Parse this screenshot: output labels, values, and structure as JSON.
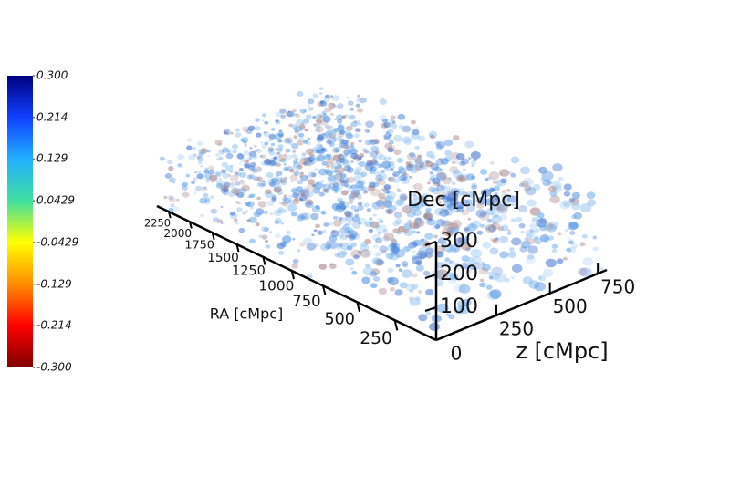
{
  "chart_data": {
    "type": "volume",
    "colorbar": {
      "lim": [
        -0.3,
        0.3
      ],
      "ticks": [
        {
          "value": 0.3,
          "label": "0.300"
        },
        0.214,
        0.129,
        0.0429,
        -0.0429,
        -0.129,
        -0.214,
        {
          "value": -0.3,
          "label": "-0.300"
        }
      ],
      "colors": [
        "#7f0000",
        "#ff0000",
        "#ff8c00",
        "#ffff00",
        "#40e0a0",
        "#20b0ff",
        "#1040ff",
        "#000080"
      ]
    },
    "xlabel": "RA [cMpc]",
    "xlim": [
      0,
      2400
    ],
    "xticks": [
      250,
      500,
      750,
      1000,
      1250,
      1500,
      1750,
      2000,
      2250
    ],
    "zlabel": "z [cMpc]",
    "zlim": [
      0,
      800
    ],
    "zticks": [
      0,
      250,
      500,
      750
    ],
    "ylabel": "Dec [cMpc]",
    "ylim": [
      0,
      300
    ],
    "yticks": [
      100,
      200,
      300
    ]
  }
}
